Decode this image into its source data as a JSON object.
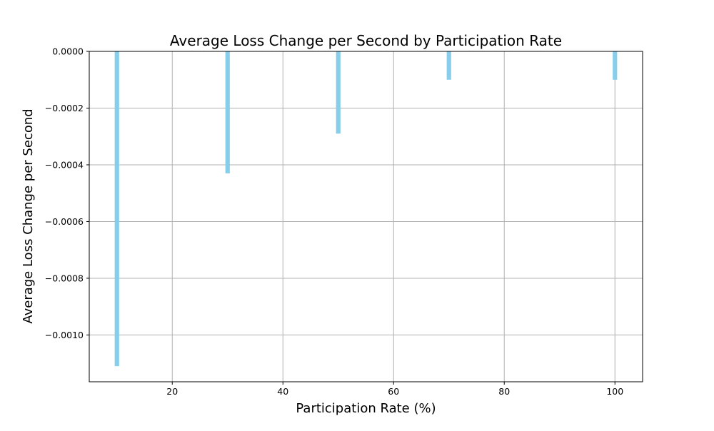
{
  "chart_data": {
    "type": "bar",
    "title": "Average Loss Change per Second by Participation Rate",
    "xlabel": "Participation Rate (%)",
    "ylabel": "Average Loss Change per Second",
    "x": [
      10,
      30,
      50,
      70,
      100
    ],
    "values": [
      -0.00111,
      -0.00043,
      -0.00029,
      -0.0001,
      -0.0001
    ],
    "xlim": [
      5,
      105
    ],
    "ylim": [
      -0.001165,
      0.0
    ],
    "xticks": [
      20,
      40,
      60,
      80,
      100
    ],
    "yticks": [
      0.0,
      -0.0002,
      -0.0004,
      -0.0006,
      -0.0008,
      -0.001
    ],
    "xtick_labels": [
      "20",
      "40",
      "60",
      "80",
      "100"
    ],
    "ytick_labels": [
      "0.0000",
      "−0.0002",
      "−0.0004",
      "−0.0006",
      "−0.0008",
      "−0.0010"
    ],
    "bar_color": "#87CEEB",
    "grid": true,
    "legend": false
  }
}
